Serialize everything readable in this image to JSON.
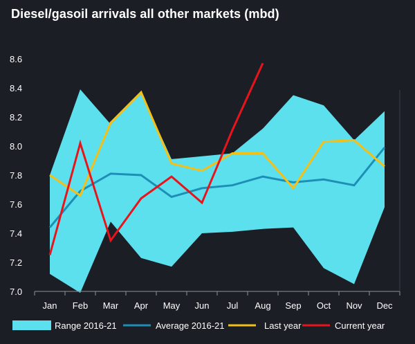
{
  "chart_data": {
    "type": "line",
    "title": "Diesel/gasoil arrivals all other markets (mbd)",
    "xlabel": "",
    "ylabel": "",
    "categories": [
      "Jan",
      "Feb",
      "Mar",
      "Apr",
      "May",
      "Jun",
      "Jul",
      "Aug",
      "Sep",
      "Oct",
      "Nov",
      "Dec"
    ],
    "ylim": [
      7.0,
      8.6
    ],
    "yticks": [
      7.0,
      7.2,
      7.4,
      7.6,
      7.8,
      8.0,
      8.2,
      8.4,
      8.6
    ],
    "grid": false,
    "legend_position": "bottom",
    "range": {
      "name": "Range 2016-21",
      "color": "#5de0ee",
      "min": [
        7.12,
        6.99,
        7.48,
        7.23,
        7.17,
        7.4,
        7.41,
        7.43,
        7.44,
        7.16,
        7.05,
        7.58
      ],
      "max": [
        7.8,
        8.39,
        8.15,
        8.37,
        7.91,
        7.93,
        7.95,
        8.12,
        8.35,
        8.28,
        8.04,
        8.24
      ]
    },
    "series": [
      {
        "name": "Average 2016-21",
        "color": "#1d8fb7",
        "values": [
          7.44,
          7.69,
          7.81,
          7.8,
          7.65,
          7.71,
          7.73,
          7.79,
          7.75,
          7.77,
          7.73,
          7.99
        ]
      },
      {
        "name": "Last year",
        "color": "#f2c018",
        "values": [
          7.8,
          7.66,
          8.16,
          8.37,
          7.88,
          7.83,
          7.95,
          7.95,
          7.71,
          8.03,
          8.04,
          7.86
        ]
      },
      {
        "name": "Current year",
        "color": "#e8141b",
        "values": [
          7.25,
          8.02,
          7.35,
          7.64,
          7.79,
          7.61,
          8.11,
          8.57,
          null,
          null,
          null,
          null
        ]
      }
    ]
  }
}
